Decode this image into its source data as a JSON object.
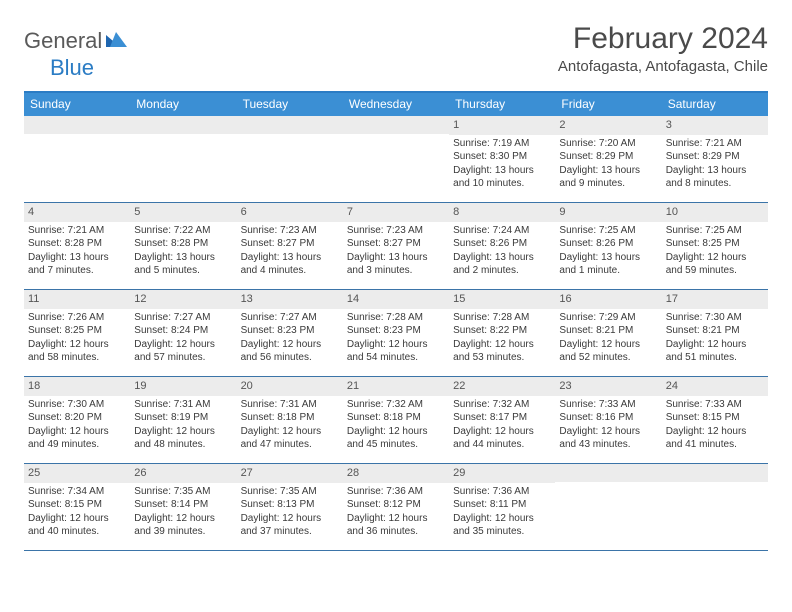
{
  "brand": {
    "general": "General",
    "blue": "Blue"
  },
  "title": "February 2024",
  "location": "Antofagasta, Antofagasta, Chile",
  "colors": {
    "header_bg": "#3b8fd4",
    "header_border": "#2b7cc4",
    "row_border": "#3b74a8",
    "daynum_bg": "#ececec",
    "text": "#3a3a3a",
    "logo_grey": "#5a5a5a",
    "logo_blue": "#2b7cc4"
  },
  "weekdays": [
    "Sunday",
    "Monday",
    "Tuesday",
    "Wednesday",
    "Thursday",
    "Friday",
    "Saturday"
  ],
  "weeks": [
    [
      {
        "day": "",
        "sunrise": "",
        "sunset": "",
        "daylight": ""
      },
      {
        "day": "",
        "sunrise": "",
        "sunset": "",
        "daylight": ""
      },
      {
        "day": "",
        "sunrise": "",
        "sunset": "",
        "daylight": ""
      },
      {
        "day": "",
        "sunrise": "",
        "sunset": "",
        "daylight": ""
      },
      {
        "day": "1",
        "sunrise": "Sunrise: 7:19 AM",
        "sunset": "Sunset: 8:30 PM",
        "daylight": "Daylight: 13 hours and 10 minutes."
      },
      {
        "day": "2",
        "sunrise": "Sunrise: 7:20 AM",
        "sunset": "Sunset: 8:29 PM",
        "daylight": "Daylight: 13 hours and 9 minutes."
      },
      {
        "day": "3",
        "sunrise": "Sunrise: 7:21 AM",
        "sunset": "Sunset: 8:29 PM",
        "daylight": "Daylight: 13 hours and 8 minutes."
      }
    ],
    [
      {
        "day": "4",
        "sunrise": "Sunrise: 7:21 AM",
        "sunset": "Sunset: 8:28 PM",
        "daylight": "Daylight: 13 hours and 7 minutes."
      },
      {
        "day": "5",
        "sunrise": "Sunrise: 7:22 AM",
        "sunset": "Sunset: 8:28 PM",
        "daylight": "Daylight: 13 hours and 5 minutes."
      },
      {
        "day": "6",
        "sunrise": "Sunrise: 7:23 AM",
        "sunset": "Sunset: 8:27 PM",
        "daylight": "Daylight: 13 hours and 4 minutes."
      },
      {
        "day": "7",
        "sunrise": "Sunrise: 7:23 AM",
        "sunset": "Sunset: 8:27 PM",
        "daylight": "Daylight: 13 hours and 3 minutes."
      },
      {
        "day": "8",
        "sunrise": "Sunrise: 7:24 AM",
        "sunset": "Sunset: 8:26 PM",
        "daylight": "Daylight: 13 hours and 2 minutes."
      },
      {
        "day": "9",
        "sunrise": "Sunrise: 7:25 AM",
        "sunset": "Sunset: 8:26 PM",
        "daylight": "Daylight: 13 hours and 1 minute."
      },
      {
        "day": "10",
        "sunrise": "Sunrise: 7:25 AM",
        "sunset": "Sunset: 8:25 PM",
        "daylight": "Daylight: 12 hours and 59 minutes."
      }
    ],
    [
      {
        "day": "11",
        "sunrise": "Sunrise: 7:26 AM",
        "sunset": "Sunset: 8:25 PM",
        "daylight": "Daylight: 12 hours and 58 minutes."
      },
      {
        "day": "12",
        "sunrise": "Sunrise: 7:27 AM",
        "sunset": "Sunset: 8:24 PM",
        "daylight": "Daylight: 12 hours and 57 minutes."
      },
      {
        "day": "13",
        "sunrise": "Sunrise: 7:27 AM",
        "sunset": "Sunset: 8:23 PM",
        "daylight": "Daylight: 12 hours and 56 minutes."
      },
      {
        "day": "14",
        "sunrise": "Sunrise: 7:28 AM",
        "sunset": "Sunset: 8:23 PM",
        "daylight": "Daylight: 12 hours and 54 minutes."
      },
      {
        "day": "15",
        "sunrise": "Sunrise: 7:28 AM",
        "sunset": "Sunset: 8:22 PM",
        "daylight": "Daylight: 12 hours and 53 minutes."
      },
      {
        "day": "16",
        "sunrise": "Sunrise: 7:29 AM",
        "sunset": "Sunset: 8:21 PM",
        "daylight": "Daylight: 12 hours and 52 minutes."
      },
      {
        "day": "17",
        "sunrise": "Sunrise: 7:30 AM",
        "sunset": "Sunset: 8:21 PM",
        "daylight": "Daylight: 12 hours and 51 minutes."
      }
    ],
    [
      {
        "day": "18",
        "sunrise": "Sunrise: 7:30 AM",
        "sunset": "Sunset: 8:20 PM",
        "daylight": "Daylight: 12 hours and 49 minutes."
      },
      {
        "day": "19",
        "sunrise": "Sunrise: 7:31 AM",
        "sunset": "Sunset: 8:19 PM",
        "daylight": "Daylight: 12 hours and 48 minutes."
      },
      {
        "day": "20",
        "sunrise": "Sunrise: 7:31 AM",
        "sunset": "Sunset: 8:18 PM",
        "daylight": "Daylight: 12 hours and 47 minutes."
      },
      {
        "day": "21",
        "sunrise": "Sunrise: 7:32 AM",
        "sunset": "Sunset: 8:18 PM",
        "daylight": "Daylight: 12 hours and 45 minutes."
      },
      {
        "day": "22",
        "sunrise": "Sunrise: 7:32 AM",
        "sunset": "Sunset: 8:17 PM",
        "daylight": "Daylight: 12 hours and 44 minutes."
      },
      {
        "day": "23",
        "sunrise": "Sunrise: 7:33 AM",
        "sunset": "Sunset: 8:16 PM",
        "daylight": "Daylight: 12 hours and 43 minutes."
      },
      {
        "day": "24",
        "sunrise": "Sunrise: 7:33 AM",
        "sunset": "Sunset: 8:15 PM",
        "daylight": "Daylight: 12 hours and 41 minutes."
      }
    ],
    [
      {
        "day": "25",
        "sunrise": "Sunrise: 7:34 AM",
        "sunset": "Sunset: 8:15 PM",
        "daylight": "Daylight: 12 hours and 40 minutes."
      },
      {
        "day": "26",
        "sunrise": "Sunrise: 7:35 AM",
        "sunset": "Sunset: 8:14 PM",
        "daylight": "Daylight: 12 hours and 39 minutes."
      },
      {
        "day": "27",
        "sunrise": "Sunrise: 7:35 AM",
        "sunset": "Sunset: 8:13 PM",
        "daylight": "Daylight: 12 hours and 37 minutes."
      },
      {
        "day": "28",
        "sunrise": "Sunrise: 7:36 AM",
        "sunset": "Sunset: 8:12 PM",
        "daylight": "Daylight: 12 hours and 36 minutes."
      },
      {
        "day": "29",
        "sunrise": "Sunrise: 7:36 AM",
        "sunset": "Sunset: 8:11 PM",
        "daylight": "Daylight: 12 hours and 35 minutes."
      },
      {
        "day": "",
        "sunrise": "",
        "sunset": "",
        "daylight": ""
      },
      {
        "day": "",
        "sunrise": "",
        "sunset": "",
        "daylight": ""
      }
    ]
  ]
}
